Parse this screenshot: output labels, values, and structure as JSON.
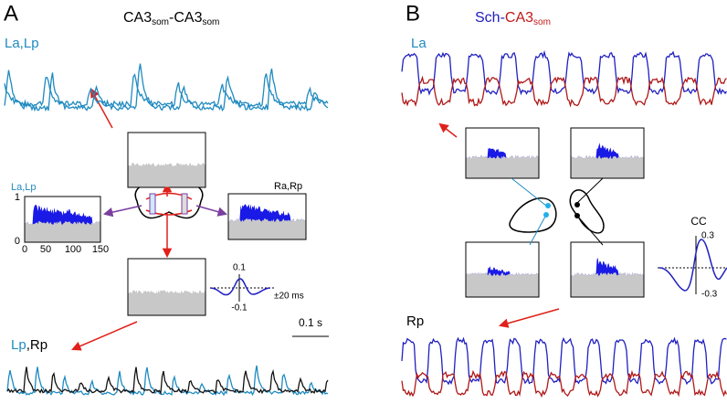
{
  "panel_a": {
    "label": "A",
    "title": [
      "CA3",
      "som",
      "-",
      "CA3",
      "som"
    ],
    "trace_top_label": "La,Lp",
    "inset_left_label": "La,Lp",
    "inset_right_label": "Ra,Rp",
    "hist_y_ticks": [
      "1",
      "0"
    ],
    "hist_x_ticks": [
      "0",
      "50",
      "100",
      "150"
    ],
    "cc_ticks": [
      "0.1",
      "-0.1"
    ],
    "cc_window": "±20 ms",
    "scale_bar": "0.1 s",
    "trace_bottom_label": [
      "Lp",
      ",",
      "Rp"
    ]
  },
  "panel_b": {
    "label": "B",
    "title": [
      "Sch-",
      "CA3",
      "som"
    ],
    "trace_top_label": "La",
    "cc_label": "CC",
    "cc_ticks": [
      "0.3",
      "-0.3"
    ],
    "trace_bottom_label": "Rp"
  }
}
